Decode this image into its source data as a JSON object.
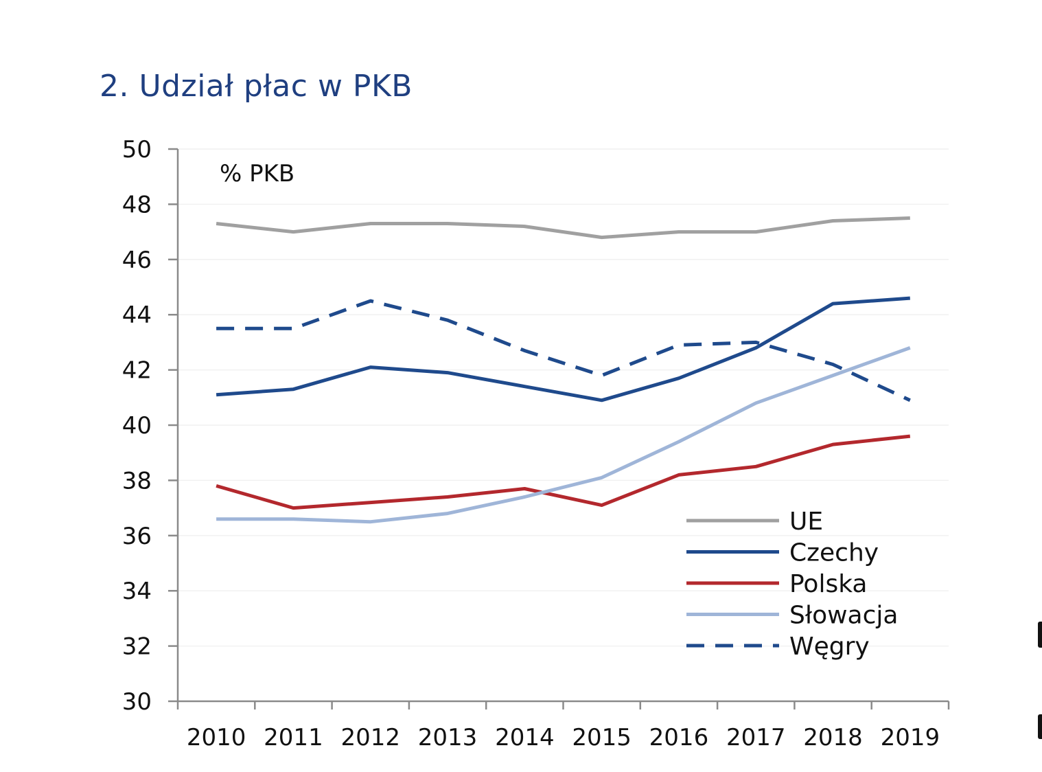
{
  "chart_data": {
    "type": "line",
    "title": "2. Udział płac w PKB",
    "unit_label": "% PKB",
    "xlabel": "",
    "ylabel": "",
    "ylim": [
      30,
      50
    ],
    "yticks": [
      30,
      32,
      34,
      36,
      38,
      40,
      42,
      44,
      46,
      48,
      50
    ],
    "categories": [
      "2010",
      "2011",
      "2012",
      "2013",
      "2014",
      "2015",
      "2016",
      "2017",
      "2018",
      "2019"
    ],
    "grid": true,
    "legend_position": "bottom-right",
    "series": [
      {
        "name": "UE",
        "color": "#a0a0a0",
        "dash": "solid",
        "values": [
          47.3,
          47.0,
          47.3,
          47.3,
          47.2,
          46.8,
          47.0,
          47.0,
          47.4,
          47.5
        ]
      },
      {
        "name": "Czechy",
        "color": "#1f4a8c",
        "dash": "solid",
        "values": [
          41.1,
          41.3,
          42.1,
          41.9,
          41.4,
          40.9,
          41.7,
          42.8,
          44.4,
          44.6
        ]
      },
      {
        "name": "Polska",
        "color": "#b3282d",
        "dash": "solid",
        "values": [
          37.8,
          37.0,
          37.2,
          37.4,
          37.7,
          37.1,
          38.2,
          38.5,
          39.3,
          39.6
        ]
      },
      {
        "name": "Słowacja",
        "color": "#9fb5d8",
        "dash": "solid",
        "values": [
          36.6,
          36.6,
          36.5,
          36.8,
          37.4,
          38.1,
          39.4,
          40.8,
          41.8,
          42.8
        ]
      },
      {
        "name": "Węgry",
        "color": "#1f4a8c",
        "dash": "dashed",
        "values": [
          43.5,
          43.5,
          44.5,
          43.8,
          42.7,
          41.8,
          42.9,
          43.0,
          42.2,
          40.9
        ]
      }
    ]
  }
}
